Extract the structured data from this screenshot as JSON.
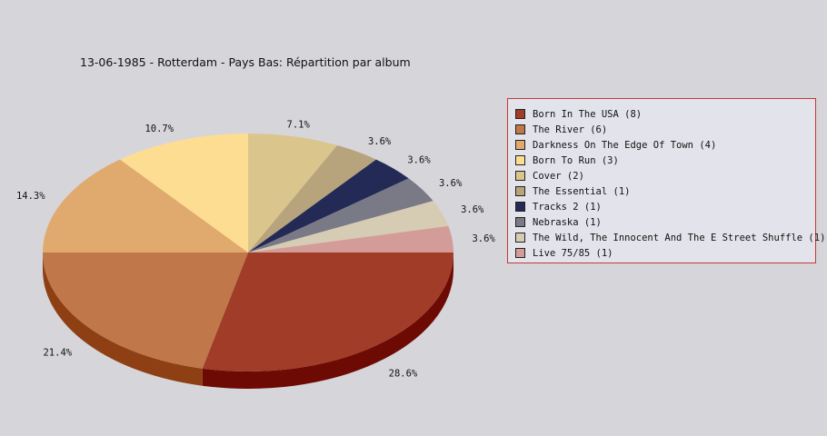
{
  "title": "13-06-1985 - Rotterdam - Pays Bas:  Répartition par album",
  "chart_data": {
    "type": "pie",
    "title": "13-06-1985 - Rotterdam - Pays Bas:  Répartition par album",
    "legend_position": "right",
    "start_angle_deg": 0,
    "direction": "clockwise",
    "slices": [
      {
        "legend": "Born In The USA (8)",
        "value": 8,
        "label": "28.6%",
        "color": "#a03c28",
        "side": "#6e0a04"
      },
      {
        "legend": "The River (6)",
        "value": 6,
        "label": "21.4%",
        "color": "#c0774a",
        "side": "#8e4014"
      },
      {
        "legend": "Darkness On The Edge Of Town (4)",
        "value": 4,
        "label": "14.3%",
        "color": "#e0aa6e",
        "side": "#a8743c"
      },
      {
        "legend": "Born To Run (3)",
        "value": 3,
        "label": "10.7%",
        "color": "#fddd92",
        "side": "#c4a860"
      },
      {
        "legend": "Cover (2)",
        "value": 2,
        "label": "7.1%",
        "color": "#dac68c",
        "side": "#a8965e"
      },
      {
        "legend": "The Essential (1)",
        "value": 1,
        "label": "3.6%",
        "color": "#b8a47c",
        "side": "#8a784e"
      },
      {
        "legend": "Tracks 2 (1)",
        "value": 1,
        "label": "3.6%",
        "color": "#242a56",
        "side": "#10142e"
      },
      {
        "legend": "Nebraska (1)",
        "value": 1,
        "label": "3.6%",
        "color": "#7a7a86",
        "side": "#4e4e5a"
      },
      {
        "legend": "The Wild, The Innocent And The E Street Shuffle (1)",
        "value": 1,
        "label": "3.6%",
        "color": "#d6ccb4",
        "side": "#a69c84"
      },
      {
        "legend": "Live 75/85 (1)",
        "value": 1,
        "label": "3.6%",
        "color": "#d49c98",
        "side": "#a46c68"
      }
    ]
  }
}
